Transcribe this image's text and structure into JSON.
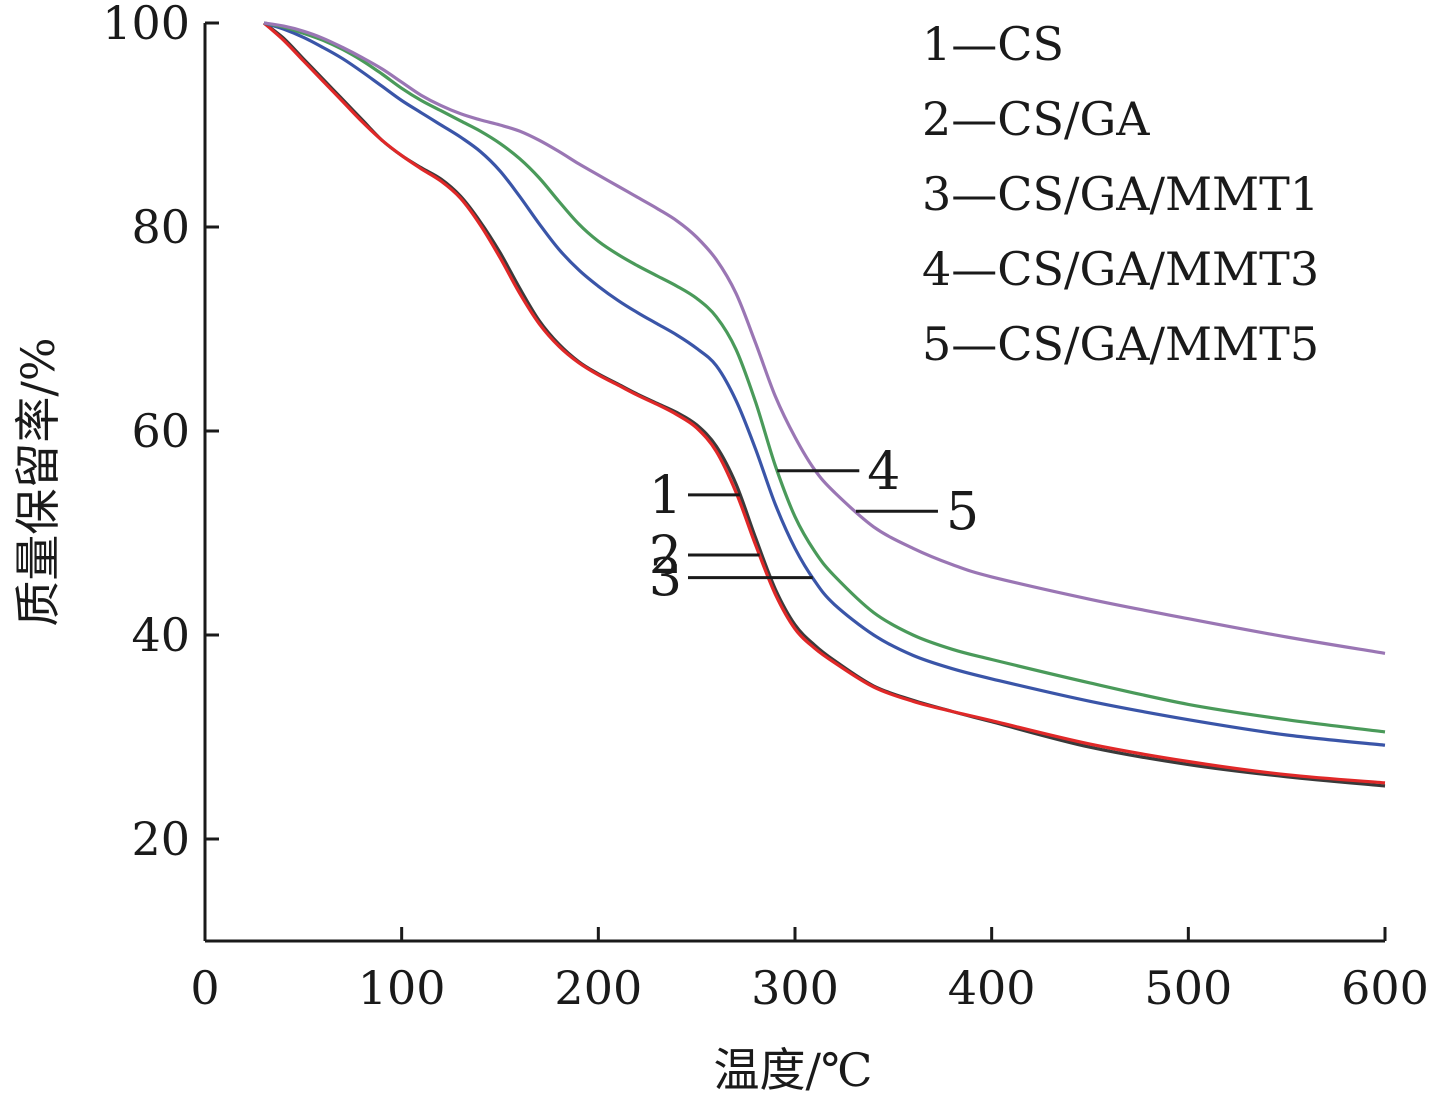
{
  "chart_data": {
    "type": "line",
    "title": "",
    "xlabel": "温度/℃",
    "ylabel": "质量保留率/%",
    "xlim": [
      0,
      600
    ],
    "ylim": [
      10,
      100
    ],
    "xticks": [
      0,
      100,
      200,
      300,
      400,
      500,
      600
    ],
    "yticks": [
      20,
      40,
      60,
      80,
      100
    ],
    "grid": false,
    "legend_position": "top-right",
    "legend": [
      {
        "label": "1—CS"
      },
      {
        "label": "2—CS/GA"
      },
      {
        "label": "3—CS/GA/MMT1"
      },
      {
        "label": "4—CS/GA/MMT3"
      },
      {
        "label": "5—CS/GA/MMT5"
      }
    ],
    "callouts": [
      {
        "label": "1",
        "series": 0,
        "x": 272
      },
      {
        "label": "2",
        "series": 1,
        "x": 282
      },
      {
        "label": "3",
        "series": 2,
        "x": 309
      },
      {
        "label": "4",
        "series": 3,
        "x": 291
      },
      {
        "label": "5",
        "series": 4,
        "x": 331
      }
    ],
    "series": [
      {
        "color": "#3a3a3a",
        "x": [
          30,
          40,
          50,
          60,
          70,
          80,
          90,
          100,
          110,
          120,
          130,
          140,
          150,
          160,
          170,
          180,
          190,
          200,
          210,
          220,
          230,
          240,
          250,
          260,
          270,
          280,
          290,
          300,
          310,
          320,
          340,
          360,
          380,
          400,
          450,
          500,
          550,
          600
        ],
        "y": [
          100,
          98.5,
          96.5,
          94.5,
          92.5,
          90.5,
          88.5,
          87,
          85.8,
          84.7,
          83,
          80.5,
          77.5,
          74,
          70.8,
          68.5,
          66.8,
          65.6,
          64.6,
          63.6,
          62.7,
          61.8,
          60.6,
          58.5,
          54.8,
          49.5,
          44.5,
          41,
          39,
          37.5,
          35,
          33.6,
          32.5,
          31.5,
          29,
          27.3,
          26.1,
          25.2
        ]
      },
      {
        "color": "#e02828",
        "x": [
          30,
          40,
          50,
          60,
          70,
          80,
          90,
          100,
          110,
          120,
          130,
          140,
          150,
          160,
          170,
          180,
          190,
          200,
          210,
          220,
          230,
          240,
          250,
          260,
          270,
          280,
          290,
          300,
          310,
          320,
          340,
          360,
          380,
          400,
          450,
          500,
          550,
          600
        ],
        "y": [
          100,
          98.3,
          96.3,
          94.3,
          92.3,
          90.3,
          88.5,
          87,
          85.7,
          84.5,
          82.8,
          80.2,
          77,
          73.5,
          70.5,
          68.3,
          66.7,
          65.5,
          64.5,
          63.5,
          62.6,
          61.6,
          60.3,
          58,
          54,
          48.8,
          44,
          40.6,
          38.7,
          37.3,
          34.9,
          33.5,
          32.5,
          31.6,
          29.3,
          27.6,
          26.3,
          25.5
        ]
      },
      {
        "color": "#3a55a8",
        "x": [
          30,
          40,
          50,
          60,
          70,
          80,
          90,
          100,
          110,
          120,
          130,
          140,
          150,
          160,
          170,
          180,
          190,
          200,
          210,
          220,
          230,
          240,
          250,
          260,
          270,
          280,
          290,
          300,
          310,
          320,
          340,
          360,
          380,
          400,
          450,
          500,
          550,
          600
        ],
        "y": [
          100,
          99.4,
          98.6,
          97.6,
          96.5,
          95.2,
          93.8,
          92.4,
          91.2,
          90,
          88.8,
          87.4,
          85.5,
          83,
          80.3,
          77.8,
          75.8,
          74.2,
          72.8,
          71.6,
          70.5,
          69.4,
          68.1,
          66.4,
          63,
          58.2,
          52.8,
          48.5,
          45.3,
          43,
          40,
          38,
          36.7,
          35.7,
          33.5,
          31.7,
          30.2,
          29.2
        ]
      },
      {
        "color": "#4a9a5a",
        "x": [
          30,
          40,
          50,
          60,
          70,
          80,
          90,
          100,
          110,
          120,
          130,
          140,
          150,
          160,
          170,
          180,
          190,
          200,
          210,
          220,
          230,
          240,
          250,
          260,
          270,
          280,
          290,
          300,
          310,
          320,
          340,
          360,
          380,
          400,
          450,
          500,
          550,
          600
        ],
        "y": [
          100,
          99.6,
          99,
          98.3,
          97.4,
          96.3,
          95,
          93.6,
          92.4,
          91.4,
          90.4,
          89.4,
          88.2,
          86.7,
          84.8,
          82.5,
          80.3,
          78.6,
          77.3,
          76.2,
          75.2,
          74.2,
          73,
          71.2,
          68,
          62.8,
          56.6,
          51.6,
          48.2,
          45.8,
          42.2,
          40,
          38.6,
          37.6,
          35.3,
          33.2,
          31.7,
          30.5
        ]
      },
      {
        "color": "#9a76b4",
        "x": [
          30,
          40,
          50,
          60,
          70,
          80,
          90,
          100,
          110,
          120,
          130,
          140,
          150,
          160,
          170,
          180,
          190,
          200,
          210,
          220,
          230,
          240,
          250,
          260,
          270,
          280,
          290,
          300,
          310,
          320,
          340,
          360,
          380,
          400,
          450,
          500,
          550,
          600
        ],
        "y": [
          100,
          99.7,
          99.2,
          98.5,
          97.6,
          96.6,
          95.5,
          94.2,
          92.9,
          91.9,
          91.1,
          90.5,
          90,
          89.4,
          88.5,
          87.4,
          86.2,
          85.1,
          84,
          82.9,
          81.8,
          80.6,
          79,
          76.8,
          73.5,
          68.6,
          63.4,
          59.4,
          56.2,
          54,
          50.6,
          48.5,
          46.9,
          45.7,
          43.5,
          41.6,
          39.8,
          38.2
        ]
      }
    ]
  }
}
